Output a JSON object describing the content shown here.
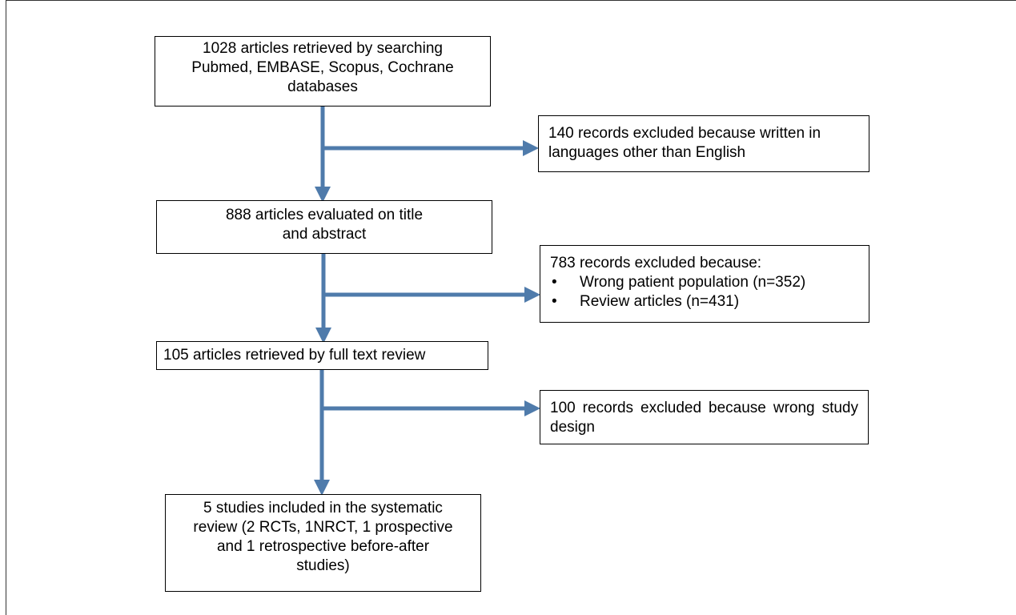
{
  "flowchart": {
    "nodes": {
      "search": {
        "lines": [
          "1028 articles retrieved by searching",
          "Pubmed, EMBASE, Scopus, Cochrane",
          "databases"
        ]
      },
      "language_excluded": {
        "lines": [
          "140 records excluded because written in",
          "languages other than English"
        ]
      },
      "screened": {
        "lines": [
          "888 articles evaluated on title",
          "and abstract"
        ]
      },
      "screening_excluded": {
        "heading": "783 records excluded because:",
        "bullets": [
          "Wrong patient population (n=352)",
          "Review articles (n=431)"
        ]
      },
      "full_text": {
        "text": "105 articles retrieved by full text review"
      },
      "design_excluded": {
        "text": "100 records excluded because wrong study design"
      },
      "included": {
        "lines": [
          "5 studies included in the systematic",
          "review (2 RCTs, 1NRCT, 1 prospective",
          "and 1 retrospective before-after",
          "studies)"
        ]
      }
    },
    "colors": {
      "arrow_fill": "#4f7bab",
      "arrow_stroke": "#36618f",
      "box_border": "#000000"
    }
  }
}
